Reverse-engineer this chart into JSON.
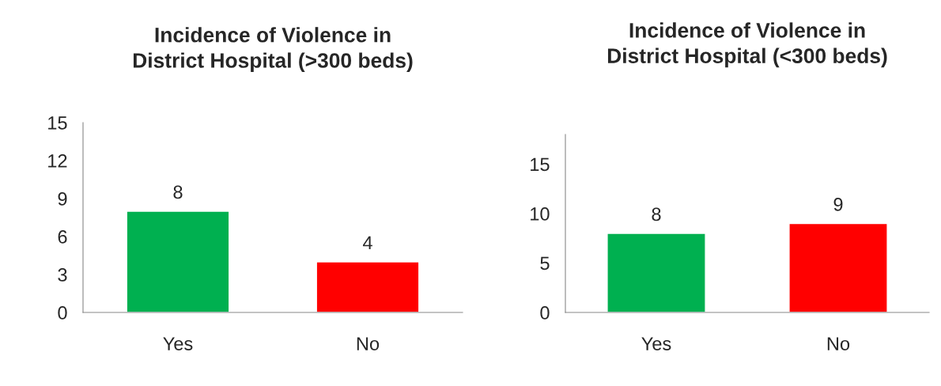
{
  "chart_data": [
    {
      "type": "bar",
      "title": "Incidence of Violence in\nDistrict Hospital (>300 beds)",
      "categories": [
        "Yes",
        "No"
      ],
      "values": [
        8,
        4
      ],
      "colors": [
        "#00b050",
        "#ff0000"
      ],
      "ylim": [
        0,
        15
      ],
      "yticks": [
        0,
        3,
        6,
        9,
        12,
        15
      ],
      "data_labels": true,
      "grid": false,
      "legend": false
    },
    {
      "type": "bar",
      "title": "Incidence of Violence in\nDistrict Hospital (<300 beds)",
      "categories": [
        "Yes",
        "No"
      ],
      "values": [
        8,
        9
      ],
      "colors": [
        "#00b050",
        "#ff0000"
      ],
      "ylim": [
        0,
        18
      ],
      "yticks": [
        0,
        5,
        10,
        15
      ],
      "data_labels": true,
      "grid": false,
      "legend": false
    }
  ]
}
